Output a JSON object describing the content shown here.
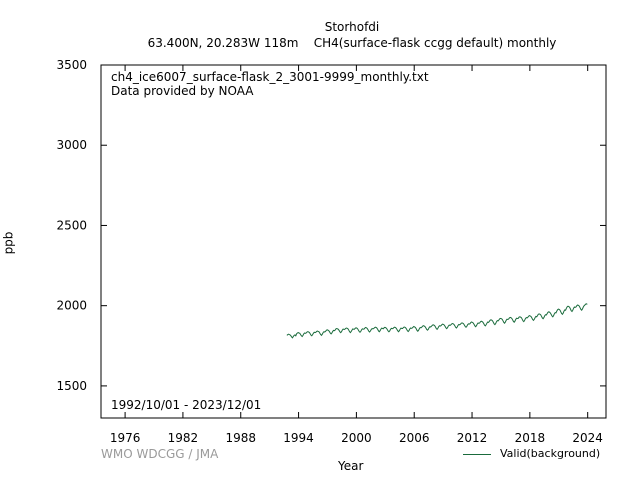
{
  "chart_data": {
    "type": "line",
    "title": "Storhofdi",
    "subtitle_location": "63.400N, 20.283W 118m",
    "subtitle_gas": "CH4(surface-flask ccgg default) monthly",
    "file_label": "ch4_ice6007_surface-flask_2_3001-9999_monthly.txt",
    "provider_label": "Data provided by NOAA",
    "period_label": "1992/10/01 - 2023/12/01",
    "credit": "WMO WDCGG / JMA",
    "xlabel": "Year",
    "ylabel": "ppb",
    "xlim": [
      1973.5,
      2025.9
    ],
    "ylim": [
      1300,
      3500
    ],
    "xticks": [
      1976,
      1982,
      1988,
      1994,
      2000,
      2006,
      2012,
      2018,
      2024
    ],
    "yticks": [
      1500,
      2000,
      2500,
      3000,
      3500
    ],
    "grid": false,
    "legend_position": "bottom-right",
    "line_color": "#1a6b3c",
    "series": [
      {
        "name": "Valid(background)",
        "start": "1992-10",
        "step": "monthly",
        "values": [
          1815,
          1820,
          1822,
          1820,
          1818,
          1812,
          1805,
          1800,
          1808,
          1815,
          1818,
          1812,
          1825,
          1830,
          1832,
          1830,
          1828,
          1820,
          1812,
          1808,
          1815,
          1825,
          1830,
          1828,
          1830,
          1836,
          1838,
          1836,
          1833,
          1825,
          1816,
          1812,
          1820,
          1828,
          1835,
          1832,
          1834,
          1840,
          1842,
          1840,
          1837,
          1829,
          1820,
          1815,
          1822,
          1832,
          1838,
          1836,
          1840,
          1846,
          1850,
          1848,
          1845,
          1838,
          1829,
          1824,
          1830,
          1840,
          1846,
          1844,
          1848,
          1855,
          1858,
          1856,
          1853,
          1846,
          1837,
          1832,
          1838,
          1848,
          1854,
          1852,
          1852,
          1858,
          1861,
          1859,
          1855,
          1847,
          1838,
          1832,
          1839,
          1848,
          1855,
          1853,
          1853,
          1859,
          1862,
          1860,
          1856,
          1848,
          1839,
          1834,
          1840,
          1850,
          1856,
          1854,
          1854,
          1860,
          1864,
          1862,
          1858,
          1850,
          1841,
          1836,
          1842,
          1851,
          1857,
          1855,
          1857,
          1863,
          1866,
          1864,
          1860,
          1852,
          1843,
          1838,
          1844,
          1854,
          1860,
          1858,
          1856,
          1862,
          1865,
          1863,
          1859,
          1851,
          1842,
          1837,
          1843,
          1852,
          1859,
          1857,
          1857,
          1863,
          1866,
          1864,
          1860,
          1852,
          1843,
          1838,
          1845,
          1854,
          1860,
          1858,
          1858,
          1864,
          1867,
          1865,
          1861,
          1853,
          1844,
          1839,
          1845,
          1855,
          1861,
          1859,
          1860,
          1866,
          1870,
          1868,
          1864,
          1856,
          1846,
          1841,
          1847,
          1857,
          1864,
          1862,
          1866,
          1872,
          1875,
          1873,
          1869,
          1861,
          1852,
          1847,
          1853,
          1863,
          1869,
          1867,
          1872,
          1878,
          1881,
          1879,
          1875,
          1867,
          1857,
          1852,
          1859,
          1869,
          1875,
          1873,
          1876,
          1882,
          1885,
          1883,
          1879,
          1871,
          1862,
          1857,
          1863,
          1873,
          1879,
          1877,
          1880,
          1886,
          1889,
          1887,
          1883,
          1875,
          1866,
          1861,
          1867,
          1877,
          1883,
          1881,
          1884,
          1890,
          1893,
          1891,
          1887,
          1879,
          1870,
          1865,
          1871,
          1881,
          1887,
          1885,
          1888,
          1895,
          1898,
          1896,
          1892,
          1884,
          1874,
          1869,
          1876,
          1886,
          1892,
          1890,
          1893,
          1900,
          1903,
          1901,
          1897,
          1889,
          1879,
          1874,
          1881,
          1891,
          1898,
          1896,
          1902,
          1909,
          1912,
          1910,
          1906,
          1897,
          1887,
          1882,
          1889,
          1900,
          1907,
          1905,
          1911,
          1918,
          1921,
          1919,
          1915,
          1906,
          1896,
          1891,
          1898,
          1909,
          1916,
          1914,
          1917,
          1924,
          1927,
          1925,
          1921,
          1912,
          1902,
          1897,
          1904,
          1915,
          1922,
          1920,
          1921,
          1928,
          1931,
          1929,
          1925,
          1916,
          1906,
          1901,
          1908,
          1919,
          1926,
          1924,
          1928,
          1935,
          1938,
          1936,
          1932,
          1923,
          1913,
          1908,
          1915,
          1926,
          1933,
          1931,
          1938,
          1946,
          1949,
          1947,
          1943,
          1934,
          1924,
          1919,
          1926,
          1937,
          1944,
          1942,
          1950,
          1958,
          1962,
          1960,
          1955,
          1946,
          1936,
          1931,
          1938,
          1950,
          1957,
          1955,
          1966,
          1975,
          1979,
          1977,
          1972,
          1962,
          1951,
          1946,
          1954,
          1966,
          1974,
          1972,
          1984,
          1993,
          1997,
          1995,
          1990,
          1980,
          1969,
          1964,
          1972,
          1984,
          1992,
          1990,
          1992,
          2000,
          2004,
          2002,
          1997,
          1987,
          1977,
          1972,
          1980,
          1992,
          2000,
          2004,
          2010,
          2012,
          2008
        ]
      }
    ]
  }
}
